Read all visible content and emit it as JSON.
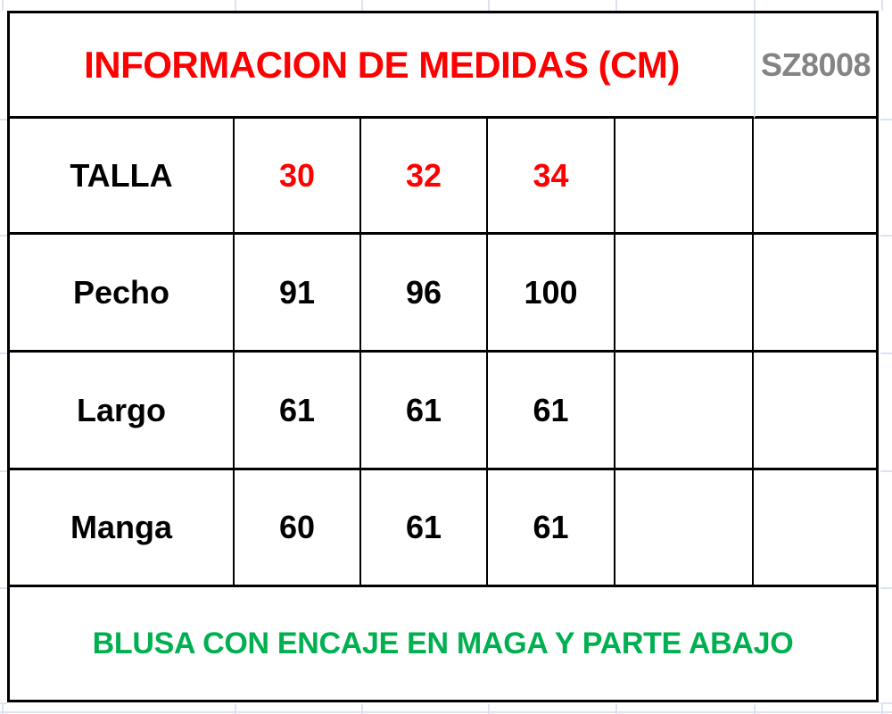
{
  "header": {
    "title": "INFORMACION DE MEDIDAS (CM)",
    "code": "SZ8008"
  },
  "size_row": {
    "label": "TALLA",
    "values": [
      "30",
      "32",
      "34",
      "",
      ""
    ]
  },
  "measure_rows": [
    {
      "label": "Pecho",
      "values": [
        "91",
        "96",
        "100",
        "",
        ""
      ]
    },
    {
      "label": "Largo",
      "values": [
        "61",
        "61",
        "61",
        "",
        ""
      ]
    },
    {
      "label": "Manga",
      "values": [
        "60",
        "61",
        "61",
        "",
        ""
      ]
    }
  ],
  "footer_note": "BLUSA CON ENCAJE EN MAGA Y PARTE ABAJO",
  "colors": {
    "red": "#ff0000",
    "gray": "#848484",
    "green": "#00b050",
    "grid": "#dce4f2",
    "border": "#000000"
  }
}
